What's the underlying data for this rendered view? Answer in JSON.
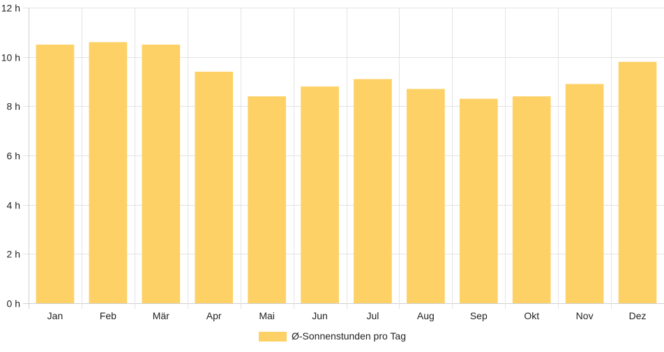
{
  "chart_data": {
    "type": "bar",
    "categories": [
      "Jan",
      "Feb",
      "Mär",
      "Apr",
      "Mai",
      "Jun",
      "Jul",
      "Aug",
      "Sep",
      "Okt",
      "Nov",
      "Dez"
    ],
    "series": [
      {
        "name": "Ø-Sonnenstunden pro Tag",
        "values": [
          10.5,
          10.6,
          10.5,
          9.4,
          8.4,
          8.8,
          9.1,
          8.7,
          8.3,
          8.4,
          8.9,
          9.8
        ],
        "color": "#fdd166"
      }
    ],
    "ylim": [
      0,
      12
    ],
    "yticks": [
      0,
      2,
      4,
      6,
      8,
      10,
      12
    ],
    "ytick_labels": [
      "0 h",
      "2 h",
      "4 h",
      "6 h",
      "8 h",
      "10 h",
      "12 h"
    ],
    "grid": true,
    "legend_position": "bottom"
  },
  "legend": {
    "label": "Ø-Sonnenstunden pro Tag"
  }
}
